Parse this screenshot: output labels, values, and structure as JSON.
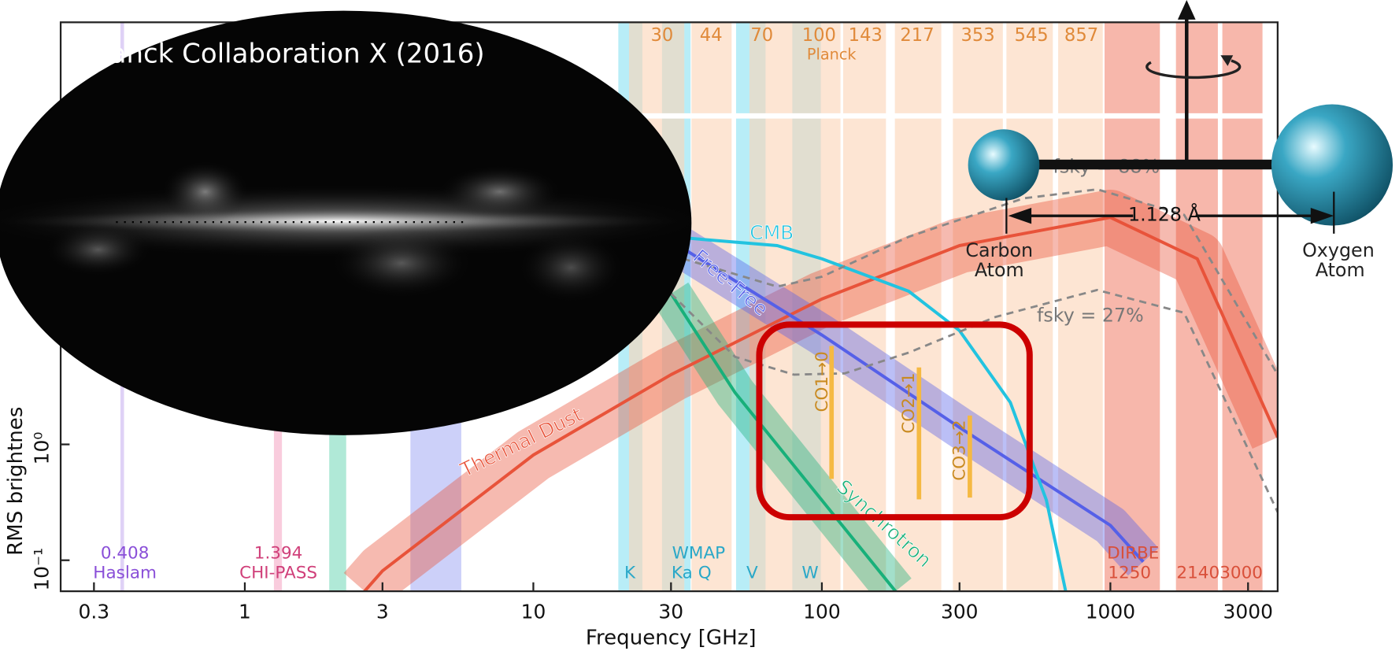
{
  "chart_data": {
    "type": "line",
    "xlabel": "Frequency [GHz]",
    "ylabel": "RMS brightnes",
    "xscale": "log",
    "yscale": "log",
    "xlim": [
      0.23,
      3800
    ],
    "ylim": [
      0.054,
      4400
    ],
    "xticks": [
      0.3,
      1,
      3,
      10,
      30,
      100,
      300,
      1000,
      3000
    ],
    "yticks": [
      {
        "value": 0.1,
        "label": "10⁻¹"
      },
      {
        "value": 1,
        "label": "10⁰"
      }
    ],
    "series": [
      {
        "name": "Thermal Dust",
        "color": "#e8533a",
        "x": [
          2.6,
          3,
          10,
          30,
          100,
          300,
          1000,
          2000,
          3800
        ],
        "values": [
          0.054,
          0.081,
          0.81,
          4.0,
          18,
          52,
          91,
          40,
          1.15
        ]
      },
      {
        "name": "Free-Free",
        "color": "#5560e8",
        "x": [
          30,
          100,
          300,
          1000,
          1300
        ],
        "values": [
          57,
          8.8,
          1.4,
          0.2,
          0.097
        ]
      },
      {
        "name": "Synchrotron",
        "color": "#18b07a",
        "x": [
          30,
          50,
          100,
          180
        ],
        "values": [
          20,
          2.8,
          0.33,
          0.054
        ]
      },
      {
        "name": "CMB",
        "color": "#22c3e0",
        "x": [
          30,
          70,
          100,
          200,
          300,
          450,
          600,
          700
        ],
        "values": [
          62,
          52,
          40,
          21,
          9.6,
          2.3,
          0.33,
          0.054
        ]
      },
      {
        "name": "fsky = 88%",
        "color": "#888888",
        "dashed": true,
        "x": [
          30,
          70,
          100,
          200,
          500,
          900,
          1800,
          3800
        ],
        "values": [
          43,
          23,
          28,
          62,
          133,
          159,
          96,
          4.0
        ]
      },
      {
        "name": "fsky = 27%",
        "color": "#888888",
        "dashed": true,
        "x": [
          30,
          50,
          80,
          120,
          200,
          400,
          900,
          1800,
          3800
        ],
        "values": [
          20,
          5.7,
          4.0,
          4.1,
          6.2,
          12.6,
          21.5,
          13.7,
          0.26
        ]
      }
    ],
    "annotations": {
      "top_bands": [
        "30",
        "44",
        "70",
        "100",
        "143",
        "217",
        "353",
        "545",
        "857"
      ],
      "top_name": "Planck",
      "haslam": [
        "0.408",
        "Haslam"
      ],
      "chipass": [
        "1.394",
        "CHI-PASS"
      ],
      "k": "K",
      "wmap": [
        "WMAP",
        "Ka Q"
      ],
      "v": "V",
      "w": "W",
      "dirbe": [
        "DIRBE",
        "1250"
      ],
      "dirbe_hi": "21403000",
      "co_lines": [
        "CO1→0",
        "CO2→1",
        "CO3→2"
      ]
    }
  },
  "overlay": {
    "image_title": "Planck Collaboration X (2016)",
    "carbon": [
      "Carbon",
      "Atom"
    ],
    "oxygen": [
      "Oxygen",
      "Atom"
    ],
    "bond_length": "1.128 Å"
  }
}
